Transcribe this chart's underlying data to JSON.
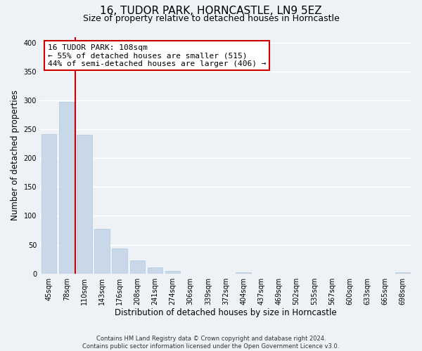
{
  "title": "16, TUDOR PARK, HORNCASTLE, LN9 5EZ",
  "subtitle": "Size of property relative to detached houses in Horncastle",
  "xlabel": "Distribution of detached houses by size in Horncastle",
  "ylabel": "Number of detached properties",
  "bar_labels": [
    "45sqm",
    "78sqm",
    "110sqm",
    "143sqm",
    "176sqm",
    "208sqm",
    "241sqm",
    "274sqm",
    "306sqm",
    "339sqm",
    "372sqm",
    "404sqm",
    "437sqm",
    "469sqm",
    "502sqm",
    "535sqm",
    "567sqm",
    "600sqm",
    "633sqm",
    "665sqm",
    "698sqm"
  ],
  "bar_values": [
    242,
    298,
    240,
    77,
    43,
    23,
    10,
    5,
    0,
    0,
    0,
    2,
    0,
    0,
    0,
    0,
    0,
    0,
    0,
    0,
    2
  ],
  "bar_color": "#c8d8e8",
  "bar_edge_color": "#b0c8e0",
  "property_line_x": 1.5,
  "property_line_label": "16 TUDOR PARK: 108sqm",
  "annotation_line1": "← 55% of detached houses are smaller (515)",
  "annotation_line2": "44% of semi-detached houses are larger (406) →",
  "annotation_box_color": "#ffffff",
  "annotation_box_edge": "#cc0000",
  "line_color": "#cc0000",
  "ylim": [
    0,
    410
  ],
  "yticks": [
    0,
    50,
    100,
    150,
    200,
    250,
    300,
    350,
    400
  ],
  "footer": "Contains HM Land Registry data © Crown copyright and database right 2024.\nContains public sector information licensed under the Open Government Licence v3.0.",
  "background_color": "#eef2f7",
  "grid_color": "#ffffff",
  "title_fontsize": 11,
  "subtitle_fontsize": 9,
  "axis_label_fontsize": 8.5,
  "tick_fontsize": 7,
  "footer_fontsize": 6,
  "annotation_fontsize": 8
}
